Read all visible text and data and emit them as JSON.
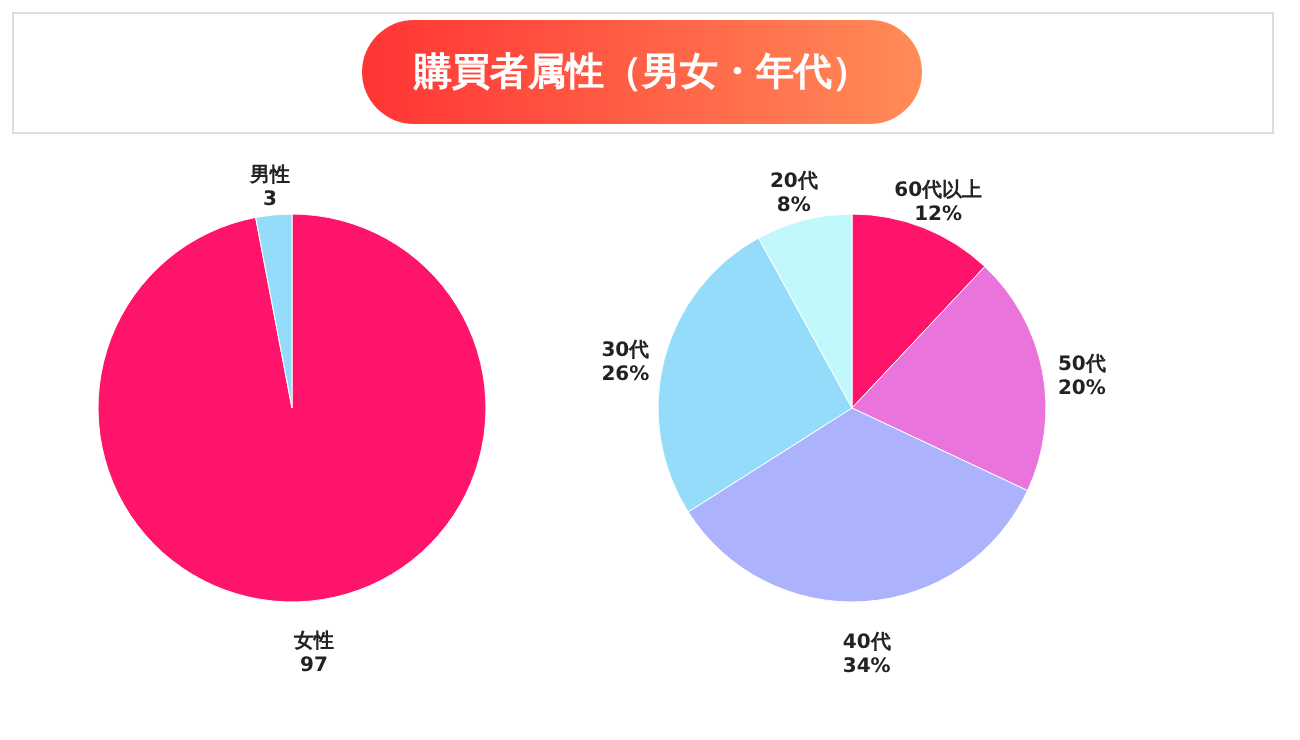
{
  "chart_data": [
    {
      "type": "pie",
      "title": "購買者属性（男女・年代）",
      "categories": [
        "女性",
        "男性"
      ],
      "values": [
        97,
        3
      ],
      "colors": [
        "#ff146c",
        "#94dcfa"
      ],
      "data_labels": true
    },
    {
      "type": "pie",
      "categories": [
        "60代以上",
        "50代",
        "40代",
        "30代",
        "20代"
      ],
      "values": [
        12,
        20,
        34,
        26,
        8
      ],
      "colors": [
        "#ff146c",
        "#e874dc",
        "#acb2fc",
        "#94dcfa",
        "#c0f8fc"
      ],
      "value_labels": [
        "12%",
        "20%",
        "34%",
        "26%",
        "8%"
      ]
    }
  ]
}
